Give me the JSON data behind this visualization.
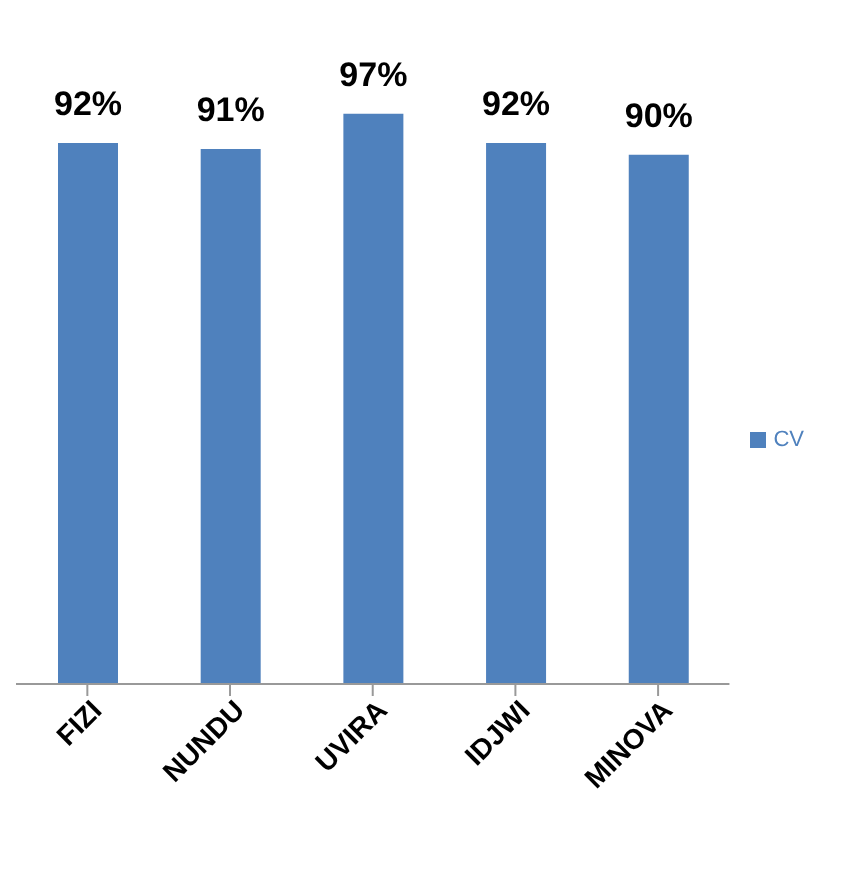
{
  "chart_data": {
    "type": "bar",
    "categories": [
      "FIZI",
      "NUNDU",
      "UVIRA",
      "IDJWI",
      "MINOVA"
    ],
    "series": [
      {
        "name": "CV",
        "color": "#4f81bd",
        "values": [
          92,
          91,
          97,
          92,
          90
        ],
        "value_labels": [
          "92%",
          "91%",
          "97%",
          "92%",
          "90%"
        ]
      }
    ],
    "tick_labels": "x",
    "legend": "right",
    "grid": false
  }
}
